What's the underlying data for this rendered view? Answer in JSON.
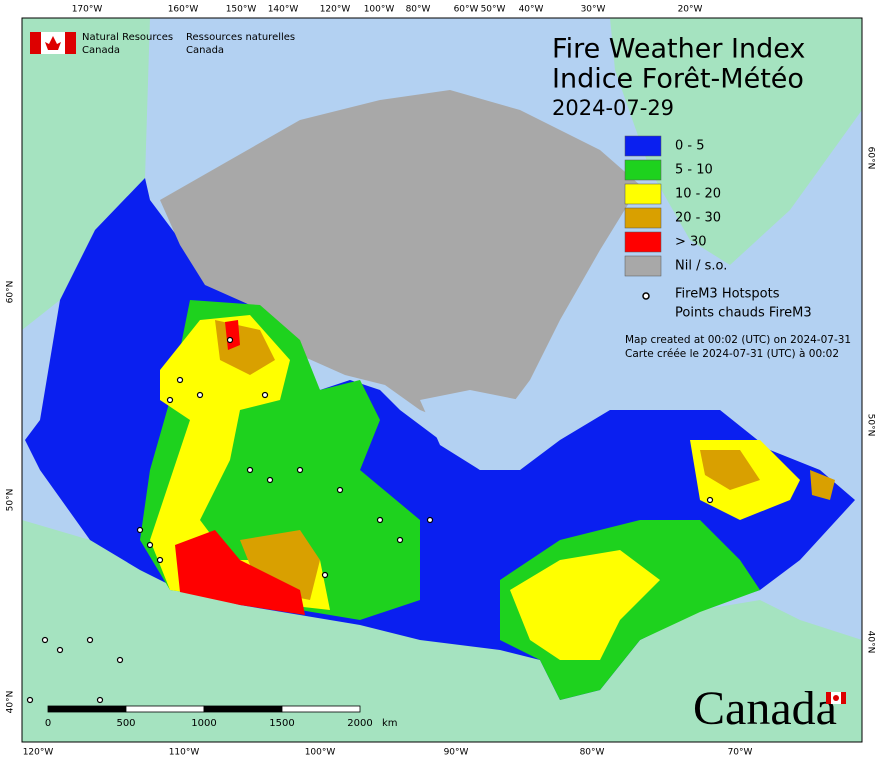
{
  "header": {
    "department_en": "Natural Resources",
    "country_en": "Canada",
    "department_fr": "Ressources naturelles",
    "country_fr": "Canada"
  },
  "title": {
    "line1": "Fire Weather Index",
    "line2": "Indice Forêt-Météo",
    "date": "2024-07-29"
  },
  "legend": {
    "classes": [
      {
        "label": "0 - 5",
        "color": "#0a1ff0"
      },
      {
        "label": "5 - 10",
        "color": "#1ed21e"
      },
      {
        "label": "10 - 20",
        "color": "#ffff00"
      },
      {
        "label": "20 - 30",
        "color": "#d9a000"
      },
      {
        "label": "> 30",
        "color": "#ff0000"
      },
      {
        "label": "Nil / s.o.",
        "color": "#a8a8a8"
      }
    ],
    "hotspots": [
      "FireM3 Hotspots",
      "Points chauds FireM3"
    ]
  },
  "notes": [
    "Map created at 00:02 (UTC) on 2024-07-31",
    "Carte créée le 2024-07-31 (UTC) à 00:02"
  ],
  "graticule": {
    "top": [
      "170°W",
      "160°W",
      "150°W",
      "140°W",
      "120°W",
      "100°W",
      "80°W",
      "60°W",
      "50°W",
      "40°W",
      "30°W",
      "20°W"
    ],
    "bottom": [
      "120°W",
      "110°W",
      "100°W",
      "90°W",
      "80°W",
      "70°W"
    ],
    "left": [
      "60°N",
      "50°N",
      "40°N"
    ],
    "right": [
      "60°N",
      "50°N",
      "40°N"
    ]
  },
  "scale": {
    "labels": [
      "0",
      "500",
      "1000",
      "1500",
      "2000"
    ],
    "unit": "km"
  },
  "wordmark": "Canada"
}
